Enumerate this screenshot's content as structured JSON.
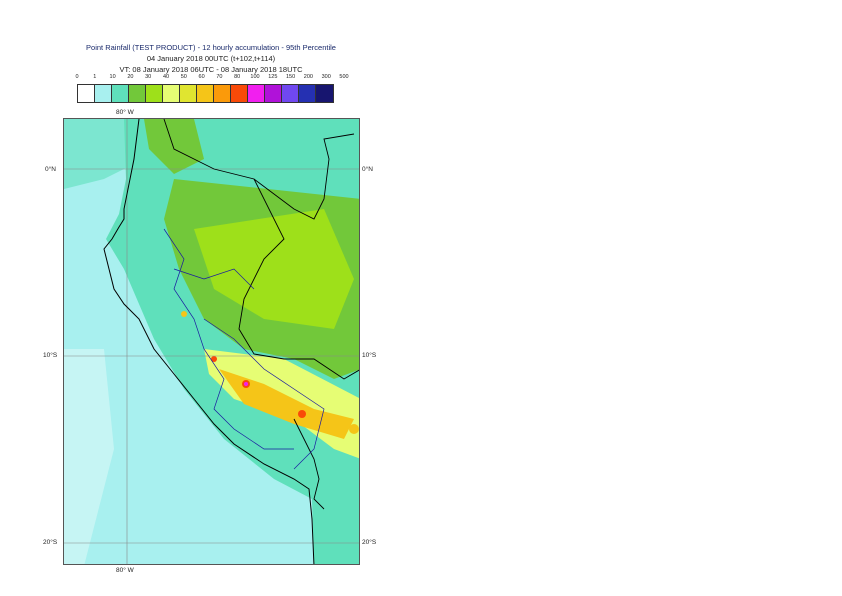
{
  "title": {
    "line1": "Point Rainfall (TEST PRODUCT) - 12 hourly accumulation - 95th Percentile",
    "line2": "04 January 2018 00UTC (t+102,t+114)",
    "line3": "VT: 08 January 2018 06UTC - 08 January 2018 18UTC"
  },
  "legend": {
    "thresholds": [
      "0",
      "1",
      "10",
      "20",
      "30",
      "40",
      "50",
      "60",
      "70",
      "80",
      "100",
      "125",
      "150",
      "200",
      "300",
      "500"
    ],
    "colors": [
      "#ffffff",
      "#a8f0ef",
      "#5fe0bb",
      "#72c83a",
      "#9ee01a",
      "#e6fd74",
      "#e0e530",
      "#f5c518",
      "#fb9a0a",
      "#f94a08",
      "#f11fef",
      "#b012d9",
      "#7048f0",
      "#2530b2",
      "#17156f"
    ]
  },
  "map": {
    "axis_labels": {
      "top_lon": "80° W",
      "bottom_lon": "80° W",
      "lat_0_left": "0°N",
      "lat_0_right": "0°N",
      "lat_10_left": "10°S",
      "lat_10_right": "10°S",
      "lat_20_left": "20°S",
      "lat_20_right": "20°S"
    },
    "colors": {
      "ocean_light": "#a8f0ef",
      "mid": "#5fe0bb",
      "green": "#72c83a",
      "yellowgreen": "#9ee01a",
      "yellow": "#e6fd74",
      "orange": "#f5c518",
      "red": "#f94a08",
      "magenta": "#f11fef",
      "coast": "#000000",
      "borders": "#1a1aa0"
    }
  }
}
